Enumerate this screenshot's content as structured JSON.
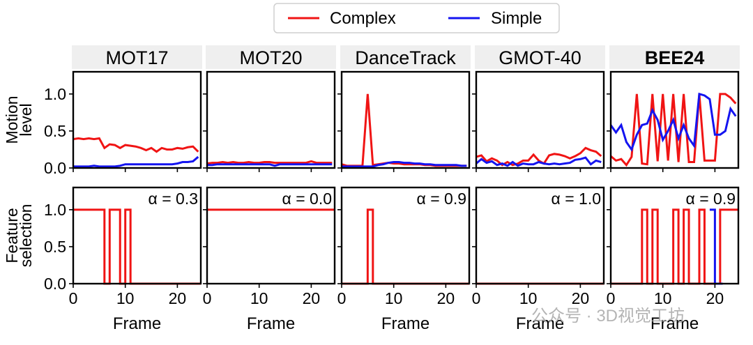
{
  "legend": {
    "entries": [
      {
        "label": "Complex",
        "color": "#f01414"
      },
      {
        "label": "Simple",
        "color": "#1414f0"
      }
    ],
    "placement": "top-center"
  },
  "watermark": "公众号 · 3D视觉工坊",
  "chart_data": [
    {
      "type": "line",
      "title": "MOT17",
      "row": "Motion level",
      "ylabel": "Motion\nlevel",
      "xlabel": "",
      "xlim": [
        0,
        24.5
      ],
      "ylim": [
        0,
        1.3
      ],
      "yticks": [
        0.0,
        0.5,
        1.0
      ],
      "xticks": [
        0,
        10,
        20
      ],
      "series": [
        {
          "name": "Complex",
          "x": [
            0,
            1,
            2,
            3,
            4,
            5,
            6,
            7,
            8,
            9,
            10,
            11,
            12,
            13,
            14,
            15,
            16,
            17,
            18,
            19,
            20,
            21,
            22,
            23,
            24
          ],
          "y": [
            0.39,
            0.4,
            0.39,
            0.4,
            0.39,
            0.4,
            0.27,
            0.32,
            0.31,
            0.27,
            0.31,
            0.3,
            0.29,
            0.27,
            0.24,
            0.27,
            0.22,
            0.27,
            0.25,
            0.25,
            0.27,
            0.26,
            0.28,
            0.29,
            0.22
          ]
        },
        {
          "name": "Simple",
          "x": [
            0,
            1,
            2,
            3,
            4,
            5,
            6,
            7,
            8,
            9,
            10,
            11,
            12,
            13,
            14,
            15,
            16,
            17,
            18,
            19,
            20,
            21,
            22,
            23,
            24
          ],
          "y": [
            0.02,
            0.02,
            0.02,
            0.02,
            0.03,
            0.02,
            0.02,
            0.02,
            0.02,
            0.03,
            0.05,
            0.05,
            0.05,
            0.05,
            0.05,
            0.05,
            0.05,
            0.05,
            0.05,
            0.05,
            0.06,
            0.08,
            0.08,
            0.09,
            0.15
          ]
        }
      ]
    },
    {
      "type": "line",
      "title": "MOT20",
      "row": "Motion level",
      "xlabel": "",
      "xlim": [
        0,
        24.5
      ],
      "ylim": [
        0,
        1.3
      ],
      "xticks": [
        0,
        10,
        20
      ],
      "series": [
        {
          "name": "Complex",
          "x": [
            0,
            1,
            2,
            3,
            4,
            5,
            6,
            7,
            8,
            9,
            10,
            11,
            12,
            13,
            14,
            15,
            16,
            17,
            18,
            19,
            20,
            21,
            22,
            23,
            24
          ],
          "y": [
            0.06,
            0.07,
            0.07,
            0.08,
            0.07,
            0.08,
            0.07,
            0.07,
            0.08,
            0.07,
            0.07,
            0.08,
            0.08,
            0.07,
            0.07,
            0.07,
            0.07,
            0.07,
            0.07,
            0.07,
            0.09,
            0.07,
            0.07,
            0.07,
            0.07
          ]
        },
        {
          "name": "Simple",
          "x": [
            0,
            1,
            2,
            3,
            4,
            5,
            6,
            7,
            8,
            9,
            10,
            11,
            12,
            13,
            14,
            15,
            16,
            17,
            18,
            19,
            20,
            21,
            22,
            23,
            24
          ],
          "y": [
            0.04,
            0.04,
            0.05,
            0.05,
            0.05,
            0.05,
            0.05,
            0.05,
            0.05,
            0.05,
            0.05,
            0.05,
            0.05,
            0.03,
            0.05,
            0.05,
            0.05,
            0.05,
            0.05,
            0.05,
            0.05,
            0.05,
            0.05,
            0.05,
            0.05
          ]
        }
      ]
    },
    {
      "type": "line",
      "title": "DanceTrack",
      "row": "Motion level",
      "xlabel": "",
      "xlim": [
        0,
        24.5
      ],
      "ylim": [
        0,
        1.3
      ],
      "xticks": [
        0,
        10,
        20
      ],
      "series": [
        {
          "name": "Complex",
          "x": [
            0,
            1,
            2,
            3,
            4,
            5,
            6,
            7,
            8,
            9,
            10,
            11,
            12,
            13,
            14,
            15,
            16,
            17,
            18,
            19,
            20,
            21,
            22,
            23,
            24
          ],
          "y": [
            0.05,
            0.03,
            0.03,
            0.03,
            0.03,
            1.0,
            0.04,
            0.05,
            0.06,
            0.07,
            0.06,
            0.06,
            0.05,
            0.05,
            0.05,
            0.05,
            0.04,
            0.04,
            0.03,
            0.03,
            0.03,
            0.03,
            0.03,
            0.03,
            0.03
          ]
        },
        {
          "name": "Simple",
          "x": [
            0,
            1,
            2,
            3,
            4,
            5,
            6,
            7,
            8,
            9,
            10,
            11,
            12,
            13,
            14,
            15,
            16,
            17,
            18,
            19,
            20,
            21,
            22,
            23,
            24
          ],
          "y": [
            0.02,
            0.02,
            0.02,
            0.02,
            0.02,
            0.02,
            0.02,
            0.04,
            0.05,
            0.07,
            0.08,
            0.08,
            0.07,
            0.07,
            0.06,
            0.06,
            0.05,
            0.05,
            0.04,
            0.04,
            0.04,
            0.04,
            0.04,
            0.03,
            0.03
          ]
        }
      ]
    },
    {
      "type": "line",
      "title": "GMOT-40",
      "row": "Motion level",
      "xlabel": "",
      "xlim": [
        0,
        24.5
      ],
      "ylim": [
        0,
        1.3
      ],
      "xticks": [
        0,
        10,
        20
      ],
      "series": [
        {
          "name": "Complex",
          "x": [
            0,
            1,
            2,
            3,
            4,
            5,
            6,
            7,
            8,
            9,
            10,
            11,
            12,
            13,
            14,
            15,
            16,
            17,
            18,
            19,
            20,
            21,
            22,
            23,
            24
          ],
          "y": [
            0.15,
            0.17,
            0.09,
            0.13,
            0.1,
            0.04,
            0.08,
            0.04,
            0.06,
            0.1,
            0.1,
            0.18,
            0.1,
            0.06,
            0.17,
            0.19,
            0.18,
            0.16,
            0.13,
            0.16,
            0.2,
            0.27,
            0.24,
            0.22,
            0.16
          ]
        },
        {
          "name": "Simple",
          "x": [
            0,
            1,
            2,
            3,
            4,
            5,
            6,
            7,
            8,
            9,
            10,
            11,
            12,
            13,
            14,
            15,
            16,
            17,
            18,
            19,
            20,
            21,
            22,
            23,
            24
          ],
          "y": [
            0.06,
            0.12,
            0.07,
            0.09,
            0.04,
            0.06,
            0.03,
            0.08,
            0.03,
            0.06,
            0.05,
            0.05,
            0.08,
            0.06,
            0.05,
            0.06,
            0.05,
            0.06,
            0.07,
            0.11,
            0.12,
            0.14,
            0.05,
            0.1,
            0.08
          ]
        }
      ]
    },
    {
      "type": "line",
      "title": "BEE24",
      "title_bold": true,
      "row": "Motion level",
      "xlabel": "",
      "xlim": [
        0,
        24.5
      ],
      "ylim": [
        0,
        1.3
      ],
      "xticks": [
        0,
        10,
        20
      ],
      "series": [
        {
          "name": "Complex",
          "x": [
            0,
            1,
            2,
            3,
            4,
            5,
            6,
            7,
            8,
            9,
            10,
            11,
            12,
            13,
            14,
            15,
            16,
            17,
            18,
            19,
            20,
            21,
            22,
            23,
            24
          ],
          "y": [
            0.16,
            0.1,
            0.12,
            0.04,
            0.15,
            1.0,
            0.06,
            0.05,
            1.0,
            0.09,
            1.0,
            0.1,
            1.0,
            0.08,
            1.0,
            0.08,
            0.08,
            1.0,
            0.1,
            0.1,
            0.1,
            1.0,
            1.0,
            0.95,
            0.87
          ]
        },
        {
          "name": "Simple",
          "x": [
            0,
            1,
            2,
            3,
            4,
            5,
            6,
            7,
            8,
            9,
            10,
            11,
            12,
            13,
            14,
            15,
            16,
            17,
            18,
            19,
            20,
            21,
            22,
            23,
            24
          ],
          "y": [
            0.58,
            0.48,
            0.58,
            0.35,
            0.25,
            0.45,
            0.58,
            0.6,
            0.78,
            0.65,
            0.38,
            0.5,
            0.65,
            0.4,
            0.58,
            0.4,
            0.3,
            1.0,
            0.98,
            0.93,
            0.45,
            0.45,
            0.5,
            0.8,
            0.7
          ]
        }
      ]
    },
    {
      "type": "line",
      "title": "",
      "row": "Feature selection",
      "ylabel": "Feature\nselection",
      "annotation": "α = 0.3",
      "xlabel": "Frame",
      "xlim": [
        0,
        24.5
      ],
      "ylim": [
        0,
        1.3
      ],
      "yticks": [
        0.0,
        0.5,
        1.0
      ],
      "xticks": [
        0,
        10,
        20
      ],
      "series": [
        {
          "name": "Complex",
          "step": true,
          "x": [
            0,
            1,
            2,
            3,
            4,
            5,
            6,
            7,
            8,
            9,
            10,
            11,
            12,
            13,
            14,
            15,
            16,
            17,
            18,
            19,
            20,
            21,
            22,
            23,
            24
          ],
          "y": [
            1,
            1,
            1,
            1,
            1,
            1,
            0,
            1,
            1,
            0,
            1,
            0,
            0,
            0,
            0,
            0,
            0,
            0,
            0,
            0,
            0,
            0,
            0,
            0,
            0
          ]
        }
      ]
    },
    {
      "type": "line",
      "title": "",
      "row": "Feature selection",
      "annotation": "α = 0.0",
      "xlabel": "Frame",
      "xlim": [
        0,
        24.5
      ],
      "ylim": [
        0,
        1.3
      ],
      "xticks": [
        0,
        10,
        20
      ],
      "series": [
        {
          "name": "Complex",
          "step": true,
          "x": [
            0,
            1,
            2,
            3,
            4,
            5,
            6,
            7,
            8,
            9,
            10,
            11,
            12,
            13,
            14,
            15,
            16,
            17,
            18,
            19,
            20,
            21,
            22,
            23,
            24
          ],
          "y": [
            1,
            1,
            1,
            1,
            1,
            1,
            1,
            1,
            1,
            1,
            1,
            1,
            1,
            1,
            1,
            1,
            1,
            1,
            1,
            1,
            1,
            1,
            1,
            1,
            1
          ]
        }
      ]
    },
    {
      "type": "line",
      "title": "",
      "row": "Feature selection",
      "annotation": "α = 0.9",
      "xlabel": "Frame",
      "xlim": [
        0,
        24.5
      ],
      "ylim": [
        0,
        1.3
      ],
      "xticks": [
        0,
        10,
        20
      ],
      "series": [
        {
          "name": "Complex",
          "step": true,
          "x": [
            0,
            1,
            2,
            3,
            4,
            5,
            6,
            7,
            8,
            9,
            10,
            11,
            12,
            13,
            14,
            15,
            16,
            17,
            18,
            19,
            20,
            21,
            22,
            23,
            24
          ],
          "y": [
            0,
            0,
            0,
            0,
            0,
            1,
            0,
            0,
            0,
            0,
            0,
            0,
            0,
            0,
            0,
            0,
            0,
            0,
            0,
            0,
            0,
            0,
            0,
            0,
            0
          ]
        }
      ]
    },
    {
      "type": "line",
      "title": "",
      "row": "Feature selection",
      "annotation": "α = 1.0",
      "xlabel": "Frame",
      "xlim": [
        0,
        24.5
      ],
      "ylim": [
        0,
        1.3
      ],
      "xticks": [
        0,
        10,
        20
      ],
      "series": [
        {
          "name": "Complex",
          "step": true,
          "x": [
            0,
            1,
            2,
            3,
            4,
            5,
            6,
            7,
            8,
            9,
            10,
            11,
            12,
            13,
            14,
            15,
            16,
            17,
            18,
            19,
            20,
            21,
            22,
            23,
            24
          ],
          "y": [
            0,
            0,
            0,
            0,
            0,
            0,
            0,
            0,
            0,
            0,
            0,
            0,
            0,
            0,
            0,
            0,
            0,
            0,
            0,
            0,
            0,
            0,
            0,
            0,
            0
          ]
        }
      ]
    },
    {
      "type": "line",
      "title": "",
      "row": "Feature selection",
      "annotation": "α = 0.9",
      "xlabel": "Frame",
      "xlim": [
        0,
        24.5
      ],
      "ylim": [
        0,
        1.3
      ],
      "xticks": [
        0,
        10,
        20
      ],
      "series": [
        {
          "name": "Complex",
          "step": true,
          "x": [
            0,
            1,
            2,
            3,
            4,
            5,
            6,
            7,
            8,
            9,
            10,
            11,
            12,
            13,
            14,
            15,
            16,
            17,
            18,
            19,
            20,
            21,
            22,
            23,
            24
          ],
          "y": [
            0,
            0,
            0,
            0,
            0,
            0,
            1,
            0,
            1,
            0,
            0,
            0,
            1,
            0,
            1,
            0,
            0,
            1,
            0,
            0,
            0,
            1,
            1,
            1,
            1
          ]
        },
        {
          "name": "Simple",
          "step": true,
          "x": [
            19,
            20,
            21
          ],
          "y": [
            1,
            0,
            0
          ]
        }
      ]
    }
  ]
}
